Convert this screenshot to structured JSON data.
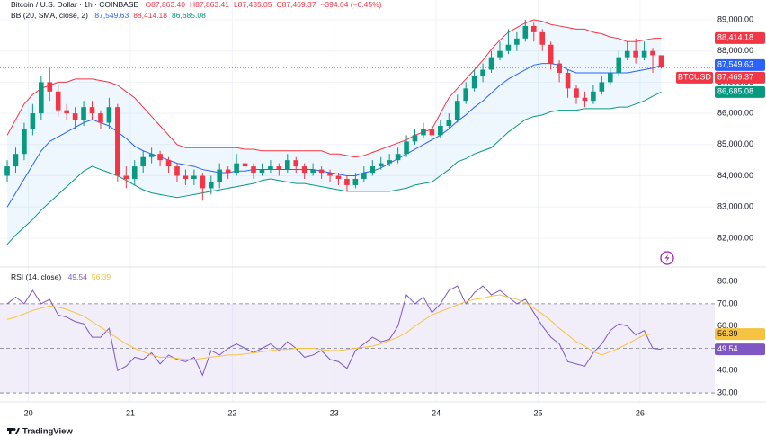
{
  "chart_data": {
    "type": "candlestick",
    "title": "Bitcoin / U.S. Dollar · 1h · COINBASE",
    "ohlc_labels": [
      "O87,863.40",
      "H87,863.41",
      "L87,435.05",
      "C87,469.37",
      "−394.04 (−0.45%)"
    ],
    "symbol": "BTCUSD",
    "last_label": "87,469.37",
    "up_color": "#089981",
    "down_color": "#f23645",
    "open": [
      84000,
      84300,
      84700,
      85500,
      86000,
      87000,
      86700,
      86100,
      86000,
      85800,
      86200,
      86000,
      85700,
      86200,
      84000,
      83900,
      84300,
      84600,
      84700,
      84500,
      84300,
      84000,
      83900,
      84000,
      83600,
      83800,
      84200,
      84100,
      84400,
      84300,
      84100,
      84200,
      84300,
      84200,
      84500,
      84300,
      84100,
      84200,
      84100,
      84000,
      83900,
      83700,
      83900,
      84100,
      84300,
      84400,
      84500,
      84700,
      85100,
      85300,
      85500,
      85300,
      85600,
      85800,
      86400,
      86800,
      87200,
      87400,
      87800,
      88000,
      88200,
      88400,
      88800,
      88600,
      88200,
      87600,
      87300,
      86800,
      86500,
      86400,
      86700,
      87000,
      87300,
      87800,
      88000,
      87800,
      88000,
      87863.4
    ],
    "high": [
      84500,
      84900,
      85700,
      86300,
      87200,
      87500,
      86900,
      86300,
      86200,
      86400,
      86400,
      86100,
      86500,
      86300,
      84300,
      84500,
      84800,
      84900,
      84800,
      84600,
      84400,
      84200,
      84200,
      84100,
      84000,
      84400,
      84300,
      84700,
      84500,
      84400,
      84400,
      84500,
      84400,
      84700,
      84600,
      84400,
      84400,
      84300,
      84200,
      84100,
      84000,
      84100,
      84300,
      84500,
      84600,
      84700,
      84900,
      85300,
      85500,
      85700,
      85600,
      85800,
      86000,
      86600,
      87000,
      87400,
      87600,
      88000,
      88300,
      88700,
      88600,
      89000,
      88900,
      88700,
      88300,
      87700,
      87400,
      86900,
      86700,
      86900,
      87200,
      87500,
      88000,
      88300,
      88400,
      88300,
      88100,
      87863.41
    ],
    "low": [
      83800,
      84100,
      84500,
      85300,
      85800,
      86400,
      85900,
      85800,
      85500,
      85600,
      85800,
      85500,
      85500,
      83800,
      83600,
      83700,
      84100,
      84400,
      84300,
      84100,
      83800,
      83700,
      83700,
      83200,
      83400,
      83600,
      83900,
      84000,
      84100,
      83900,
      84000,
      84100,
      84000,
      84100,
      84100,
      83900,
      84000,
      83900,
      83800,
      83700,
      83500,
      83600,
      83800,
      84000,
      84200,
      84300,
      84400,
      84600,
      85000,
      85200,
      85100,
      85200,
      85500,
      85700,
      86300,
      86700,
      87000,
      87300,
      87700,
      87900,
      88000,
      88300,
      88300,
      88000,
      87400,
      87000,
      86500,
      86300,
      86200,
      86300,
      86600,
      86900,
      87200,
      87700,
      87600,
      87700,
      87300,
      87435.05
    ],
    "close": [
      84300,
      84700,
      85500,
      86000,
      87000,
      86700,
      86100,
      86000,
      85800,
      86200,
      86000,
      85700,
      86200,
      84000,
      83900,
      84300,
      84600,
      84700,
      84500,
      84300,
      84000,
      83900,
      84000,
      83600,
      83800,
      84200,
      84100,
      84400,
      84300,
      84100,
      84200,
      84300,
      84200,
      84500,
      84300,
      84100,
      84200,
      84100,
      84000,
      83900,
      83700,
      83900,
      84100,
      84300,
      84400,
      84500,
      84700,
      85100,
      85300,
      85500,
      85300,
      85600,
      85800,
      86400,
      86800,
      87200,
      87400,
      87800,
      88000,
      88200,
      88400,
      88800,
      88600,
      88200,
      87600,
      87300,
      86800,
      86500,
      86400,
      86700,
      87000,
      87300,
      87800,
      88000,
      87800,
      88000,
      87863.4,
      87469.37
    ],
    "xlim": [
      -0.85,
      83.3
    ],
    "xticks": [
      {
        "value": 2.5,
        "label": "20"
      },
      {
        "value": 14.5,
        "label": "21"
      },
      {
        "value": 26.5,
        "label": "22"
      },
      {
        "value": 38.5,
        "label": "23"
      },
      {
        "value": 50.5,
        "label": "24"
      },
      {
        "value": 62.5,
        "label": "25"
      },
      {
        "value": 74.5,
        "label": "26"
      }
    ],
    "ylim": [
      81075,
      89634
    ],
    "yticks": [
      {
        "value": 82000,
        "label": "82,000.00"
      },
      {
        "value": 83000,
        "label": "83,000.00"
      },
      {
        "value": 84000,
        "label": "84,000.00"
      },
      {
        "value": 85000,
        "label": "85,000.00"
      },
      {
        "value": 86000,
        "label": "86,000.00"
      },
      {
        "value": 87000,
        "label": "87,000.00"
      },
      {
        "value": 88000,
        "label": "88,000.00"
      },
      {
        "value": 89000,
        "label": "89,000.00"
      }
    ],
    "grid": true,
    "overlay": {
      "label": "BB (20, SMA, close, 2)",
      "fill": "#2196f3",
      "series": [
        {
          "color": "#2962ff",
          "last_label": "87,549.63",
          "values": [
            83000,
            83450,
            83900,
            84350,
            84800,
            85100,
            85250,
            85400,
            85550,
            85700,
            85800,
            85700,
            85600,
            85400,
            85200,
            84950,
            84800,
            84700,
            84600,
            84500,
            84400,
            84350,
            84300,
            84200,
            84150,
            84100,
            84100,
            84150,
            84150,
            84200,
            84200,
            84200,
            84200,
            84200,
            84200,
            84200,
            84200,
            84150,
            84100,
            84050,
            84000,
            84000,
            84100,
            84150,
            84250,
            84400,
            84550,
            84700,
            84850,
            85000,
            85150,
            85300,
            85500,
            85750,
            85950,
            86200,
            86400,
            86650,
            86900,
            87100,
            87250,
            87400,
            87550,
            87600,
            87600,
            87550,
            87400,
            87300,
            87300,
            87300,
            87300,
            87300,
            87300,
            87300,
            87350,
            87400,
            87450,
            87549.63
          ]
        },
        {
          "color": "#f23645",
          "last_label": "88,414.18",
          "values": [
            85300,
            85800,
            86300,
            86600,
            86800,
            86900,
            87000,
            87000,
            87100,
            87100,
            87100,
            87050,
            87000,
            86900,
            86700,
            86500,
            86200,
            85900,
            85600,
            85300,
            85000,
            84900,
            84900,
            84900,
            84900,
            84900,
            84900,
            84900,
            84850,
            84850,
            84800,
            84800,
            84800,
            84800,
            84800,
            84800,
            84800,
            84800,
            84700,
            84700,
            84650,
            84600,
            84650,
            84750,
            84850,
            84950,
            85050,
            85150,
            85300,
            85400,
            85500,
            86000,
            86500,
            86800,
            87100,
            87400,
            87700,
            88050,
            88350,
            88600,
            88750,
            88900,
            89000,
            88950,
            88850,
            88800,
            88750,
            88700,
            88700,
            88600,
            88550,
            88450,
            88400,
            88300,
            88300,
            88350,
            88400,
            88414.18
          ]
        },
        {
          "color": "#089981",
          "last_label": "86,685.08",
          "values": [
            81800,
            82100,
            82350,
            82600,
            82900,
            83150,
            83400,
            83650,
            83900,
            84150,
            84300,
            84200,
            84100,
            84000,
            83850,
            83700,
            83550,
            83450,
            83400,
            83350,
            83300,
            83350,
            83400,
            83450,
            83500,
            83550,
            83600,
            83650,
            83700,
            83750,
            83850,
            83900,
            83850,
            83800,
            83750,
            83750,
            83700,
            83650,
            83600,
            83550,
            83500,
            83500,
            83500,
            83500,
            83500,
            83500,
            83550,
            83600,
            83700,
            83750,
            83800,
            84000,
            84200,
            84450,
            84550,
            84700,
            84800,
            84900,
            85150,
            85400,
            85600,
            85800,
            85900,
            85950,
            86050,
            86100,
            86100,
            86100,
            86150,
            86150,
            86150,
            86150,
            86200,
            86200,
            86300,
            86400,
            86550,
            86685.08
          ]
        }
      ]
    },
    "indicator": {
      "label": "RSI (14, close)",
      "ylim": [
        26,
        86.5
      ],
      "yticks": [
        {
          "value": 30,
          "label": "30.00"
        },
        {
          "value": 40,
          "label": "40.00"
        },
        {
          "value": 50,
          "label": "50.00"
        },
        {
          "value": 60,
          "label": "60.00"
        },
        {
          "value": 70,
          "label": "70.00"
        },
        {
          "value": 80,
          "label": "80.00"
        }
      ],
      "band": [
        30,
        70
      ],
      "midline": 50,
      "fill": "#7e57c2",
      "series": [
        {
          "color": "#7e57c2",
          "last_label": "49.54",
          "values": [
            70,
            73,
            70,
            76,
            70,
            72,
            65,
            64,
            62,
            61,
            55,
            55,
            59,
            40,
            42,
            46,
            45,
            48,
            43,
            47,
            45,
            44,
            46,
            38,
            49,
            47,
            50,
            52,
            50,
            48,
            50,
            52,
            49,
            53,
            50,
            46,
            47,
            49,
            45,
            44,
            41,
            49,
            52,
            55,
            53,
            54,
            60,
            74,
            70,
            73,
            66,
            70,
            76,
            78,
            70,
            75,
            78,
            74,
            76,
            73,
            70,
            72,
            66,
            60,
            55,
            52,
            44,
            43,
            42,
            48,
            52,
            58,
            61,
            60,
            56,
            58,
            50,
            49.54
          ]
        },
        {
          "color": "#f5c242",
          "last_label": "56.39",
          "values": [
            63,
            64,
            65.5,
            67,
            68,
            69,
            68.5,
            67.5,
            66,
            64.5,
            62,
            59.5,
            57,
            54.5,
            52,
            50,
            48.5,
            47,
            46,
            46,
            45.5,
            45,
            45,
            45.5,
            46,
            46.5,
            47,
            47,
            47.5,
            48,
            48.5,
            49,
            49.5,
            49.5,
            50,
            50,
            50,
            49.5,
            49,
            49,
            49.5,
            50,
            50.5,
            51,
            52,
            53.5,
            55,
            57,
            60,
            62.5,
            65,
            66.5,
            68,
            69.5,
            71,
            72,
            72.5,
            73.5,
            74,
            73,
            72,
            70.5,
            68,
            65.5,
            62.5,
            59,
            56,
            53,
            51,
            48.5,
            47,
            48.5,
            50,
            52,
            54,
            56,
            56.5,
            56.39
          ]
        }
      ]
    },
    "logo": "TradingView"
  }
}
